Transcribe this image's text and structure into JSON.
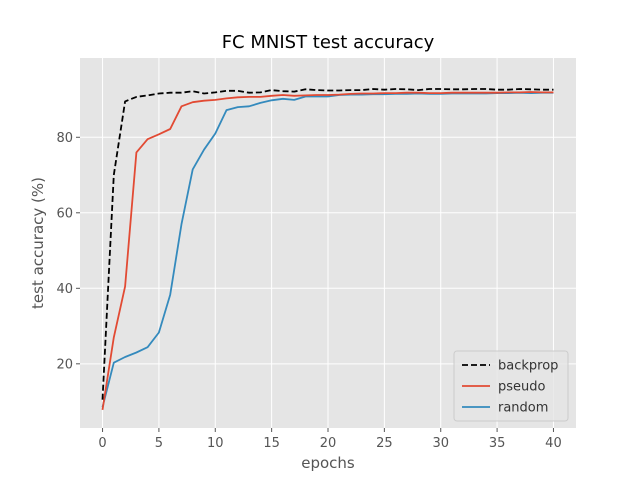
{
  "chart_data": {
    "type": "line",
    "title": "FC MNIST test accuracy",
    "xlabel": "epochs",
    "ylabel": "test accuracy (%)",
    "xlim": [
      -2,
      42
    ],
    "ylim": [
      3,
      101
    ],
    "xticks": [
      0,
      5,
      10,
      15,
      20,
      25,
      30,
      35,
      40
    ],
    "yticks": [
      20,
      40,
      60,
      80
    ],
    "grid": true,
    "legend_position": "bottom-right",
    "series": [
      {
        "name": "backprop",
        "color": "#000000",
        "dash": true,
        "x": [
          0,
          1,
          2,
          3,
          4,
          5,
          6,
          7,
          8,
          9,
          10,
          11,
          12,
          13,
          14,
          15,
          16,
          17,
          18,
          19,
          20,
          21,
          22,
          23,
          24,
          25,
          26,
          27,
          28,
          29,
          30,
          31,
          32,
          33,
          34,
          35,
          36,
          37,
          38,
          39,
          40
        ],
        "values": [
          10.5,
          70,
          89.5,
          90.7,
          91.1,
          91.6,
          91.8,
          91.8,
          92.2,
          91.6,
          91.9,
          92.3,
          92.3,
          91.8,
          91.9,
          92.5,
          92.2,
          92.1,
          92.7,
          92.5,
          92.4,
          92.4,
          92.5,
          92.5,
          92.8,
          92.6,
          92.8,
          92.7,
          92.5,
          92.8,
          92.8,
          92.7,
          92.7,
          92.8,
          92.8,
          92.6,
          92.6,
          92.8,
          92.7,
          92.6,
          92.6
        ]
      },
      {
        "name": "pseudo",
        "color": "#e24a33",
        "dash": false,
        "x": [
          0,
          1,
          2,
          3,
          4,
          5,
          6,
          7,
          8,
          9,
          10,
          11,
          12,
          13,
          14,
          15,
          16,
          17,
          18,
          19,
          20,
          21,
          22,
          23,
          24,
          25,
          26,
          27,
          28,
          29,
          30,
          31,
          32,
          33,
          34,
          35,
          36,
          37,
          38,
          39,
          40
        ],
        "values": [
          7.8,
          27,
          40.5,
          76,
          79.5,
          80.8,
          82.2,
          88.2,
          89.3,
          89.7,
          89.9,
          90.3,
          90.6,
          90.7,
          90.7,
          91,
          91.2,
          91,
          91.1,
          91.2,
          91.2,
          91.3,
          91.5,
          91.6,
          91.6,
          91.7,
          91.7,
          91.8,
          91.8,
          91.7,
          91.7,
          91.8,
          91.8,
          91.8,
          91.8,
          91.8,
          91.9,
          91.9,
          92,
          91.9,
          91.9
        ]
      },
      {
        "name": "random",
        "color": "#348abd",
        "dash": false,
        "x": [
          0,
          1,
          2,
          3,
          4,
          5,
          6,
          7,
          8,
          9,
          10,
          11,
          12,
          13,
          14,
          15,
          16,
          17,
          18,
          19,
          20,
          21,
          22,
          23,
          24,
          25,
          26,
          27,
          28,
          29,
          30,
          31,
          32,
          33,
          34,
          35,
          36,
          37,
          38,
          39,
          40
        ],
        "values": [
          8.5,
          20.3,
          21.8,
          23,
          24.4,
          28.3,
          38.3,
          57,
          71.5,
          76.7,
          81,
          87.2,
          88,
          88.2,
          89.1,
          89.8,
          90.2,
          89.9,
          90.8,
          90.8,
          90.8,
          91.2,
          91.3,
          91.3,
          91.4,
          91.4,
          91.5,
          91.5,
          91.6,
          91.5,
          91.5,
          91.6,
          91.6,
          91.6,
          91.6,
          91.7,
          91.7,
          91.8,
          91.7,
          91.8,
          91.8
        ]
      }
    ]
  }
}
